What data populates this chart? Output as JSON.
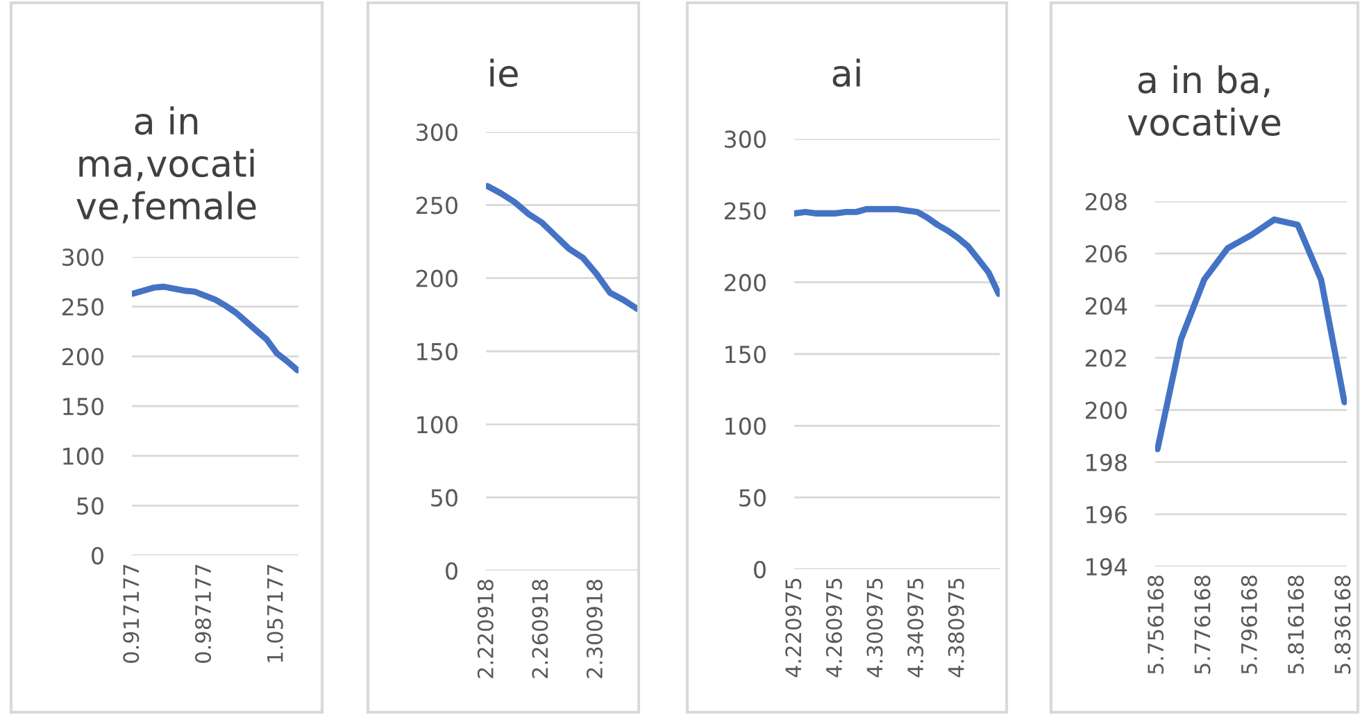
{
  "chart_data": [
    {
      "type": "line",
      "title": "a in\nma,vocati\nve,female",
      "categories": [
        "0.917177",
        null,
        null,
        null,
        null,
        null,
        null,
        "0.987177",
        null,
        null,
        null,
        null,
        null,
        null,
        "1.057177",
        null,
        null
      ],
      "series": [
        {
          "color": "#4472c4",
          "values": [
            263,
            266,
            269,
            270,
            268,
            266,
            265,
            261,
            257,
            251,
            244,
            235,
            226,
            217,
            203,
            195,
            186
          ]
        }
      ],
      "ylim": [
        0,
        300
      ],
      "yticks": [
        0,
        50,
        100,
        150,
        200,
        250,
        300
      ],
      "grid": "y",
      "legend": false,
      "marker": "none",
      "line_style": "solid"
    },
    {
      "type": "line",
      "title": "ie",
      "categories": [
        "2.220918",
        null,
        null,
        null,
        "2.260918",
        null,
        null,
        null,
        "2.300918",
        null,
        null,
        null
      ],
      "series": [
        {
          "color": "#4472c4",
          "values": [
            263,
            258,
            252,
            244,
            238,
            229,
            220,
            214,
            203,
            190,
            185,
            179
          ]
        }
      ],
      "ylim": [
        0,
        300
      ],
      "yticks": [
        0,
        50,
        100,
        150,
        200,
        250,
        300
      ],
      "grid": "y",
      "legend": false,
      "marker": "none",
      "line_style": "solid"
    },
    {
      "type": "line",
      "title": "ai",
      "categories": [
        "4.220975",
        null,
        null,
        null,
        "4.260975",
        null,
        null,
        null,
        "4.300975",
        null,
        null,
        null,
        "4.340975",
        null,
        null,
        null,
        "4.380975",
        null,
        null,
        null,
        null
      ],
      "series": [
        {
          "color": "#4472c4",
          "values": [
            248,
            249,
            248,
            248,
            248,
            249,
            249,
            251,
            251,
            251,
            251,
            250,
            249,
            245,
            240,
            236,
            231,
            225,
            216,
            207,
            192
          ]
        }
      ],
      "ylim": [
        0,
        300
      ],
      "yticks": [
        0,
        50,
        100,
        150,
        200,
        250,
        300
      ],
      "grid": "y",
      "legend": false,
      "marker": "none",
      "line_style": "solid"
    },
    {
      "type": "line",
      "title": "a in ba,\nvocative",
      "categories": [
        "5.756168",
        null,
        "5.776168",
        null,
        "5.796168",
        null,
        "5.816168",
        null,
        "5.836168"
      ],
      "series": [
        {
          "color": "#4472c4",
          "values": [
            198.5,
            202.7,
            205.0,
            206.2,
            206.7,
            207.3,
            207.1,
            205.0,
            200.3
          ]
        }
      ],
      "ylim": [
        194,
        208
      ],
      "yticks": [
        194,
        196,
        198,
        200,
        202,
        204,
        206,
        208
      ],
      "grid": "y",
      "legend": false,
      "marker": "none",
      "line_style": "solid"
    }
  ]
}
